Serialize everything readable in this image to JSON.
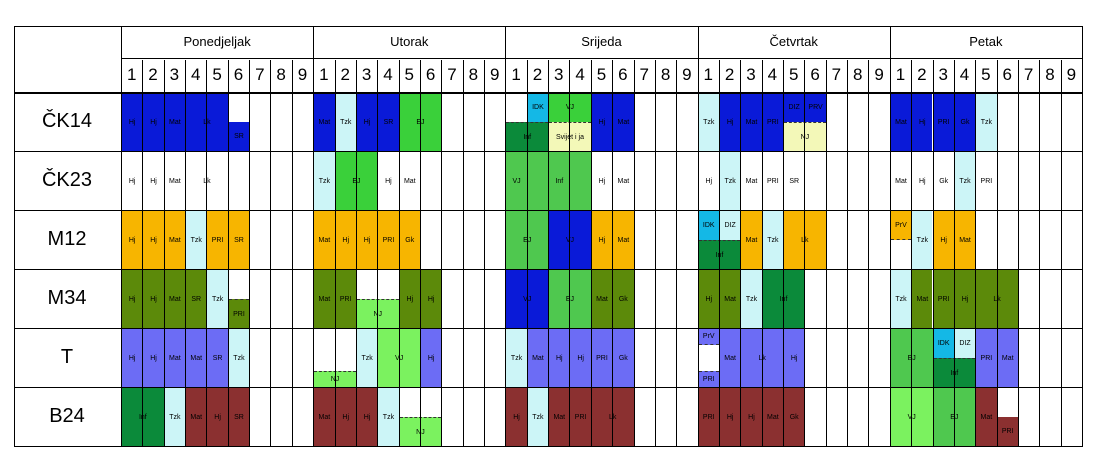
{
  "colors": {
    "blue": "#0a1ad8",
    "lightcyan": "#ccf5f7",
    "green": "#3ad03a",
    "darkgreen": "#0b8a3a",
    "cyan": "#14b8e6",
    "lightyellow": "#f3f8b8",
    "midgreen": "#4fc84f",
    "lightgreen": "#7bf25f",
    "orange": "#f7b500",
    "olive": "#5c8a0a",
    "periwinkle": "#6c6cf5",
    "maroon": "#8b3030"
  },
  "days": [
    "Ponedjeljak",
    "Utorak",
    "Srijeda",
    "Četvrtak",
    "Petak"
  ],
  "periods": [
    "1",
    "2",
    "3",
    "4",
    "5",
    "6",
    "7",
    "8",
    "9"
  ],
  "classes": [
    "ČK14",
    "ČK23",
    "M12",
    "M34",
    "T",
    "B24"
  ],
  "cells": [
    {
      "r": 0,
      "d": 0,
      "p": 0,
      "w": 1,
      "t": "Hj",
      "c": "blue"
    },
    {
      "r": 0,
      "d": 0,
      "p": 1,
      "w": 1,
      "t": "Hj",
      "c": "blue"
    },
    {
      "r": 0,
      "d": 0,
      "p": 2,
      "w": 1,
      "t": "Mat",
      "c": "blue"
    },
    {
      "r": 0,
      "d": 0,
      "p": 3,
      "w": 2,
      "t": "Lk",
      "c": "blue"
    },
    {
      "r": 0,
      "d": 0,
      "p": 5,
      "w": 1,
      "t": "SR",
      "c": "blue",
      "half": "bottom"
    },
    {
      "r": 0,
      "d": 1,
      "p": 0,
      "w": 1,
      "t": "Mat",
      "c": "blue"
    },
    {
      "r": 0,
      "d": 1,
      "p": 1,
      "w": 1,
      "t": "Tzk",
      "c": "lightcyan"
    },
    {
      "r": 0,
      "d": 1,
      "p": 2,
      "w": 1,
      "t": "Hj",
      "c": "blue"
    },
    {
      "r": 0,
      "d": 1,
      "p": 3,
      "w": 1,
      "t": "SR",
      "c": "blue"
    },
    {
      "r": 0,
      "d": 1,
      "p": 4,
      "w": 2,
      "t": "EJ",
      "c": "green"
    },
    {
      "r": 0,
      "d": 2,
      "p": 1,
      "w": 1,
      "t": "IDK",
      "c": "cyan",
      "half": "top"
    },
    {
      "r": 0,
      "d": 2,
      "p": 2,
      "w": 2,
      "t": "VJ",
      "c": "green",
      "half": "top"
    },
    {
      "r": 0,
      "d": 2,
      "p": 0,
      "w": 2,
      "t": "Inf",
      "c": "darkgreen",
      "half": "bottom",
      "dash": "t"
    },
    {
      "r": 0,
      "d": 2,
      "p": 2,
      "w": 2,
      "t": "Svijet i ja",
      "c": "lightyellow",
      "half": "bottom",
      "dash": "t"
    },
    {
      "r": 0,
      "d": 2,
      "p": 4,
      "w": 1,
      "t": "Hj",
      "c": "blue"
    },
    {
      "r": 0,
      "d": 2,
      "p": 5,
      "w": 1,
      "t": "Mat",
      "c": "blue"
    },
    {
      "r": 0,
      "d": 3,
      "p": 0,
      "w": 1,
      "t": "Tzk",
      "c": "lightcyan"
    },
    {
      "r": 0,
      "d": 3,
      "p": 1,
      "w": 1,
      "t": "Hj",
      "c": "blue"
    },
    {
      "r": 0,
      "d": 3,
      "p": 2,
      "w": 1,
      "t": "Mat",
      "c": "blue"
    },
    {
      "r": 0,
      "d": 3,
      "p": 3,
      "w": 1,
      "t": "PRI",
      "c": "blue"
    },
    {
      "r": 0,
      "d": 3,
      "p": 4,
      "w": 1,
      "t": "DIZ",
      "c": "blue",
      "half": "top"
    },
    {
      "r": 0,
      "d": 3,
      "p": 5,
      "w": 1,
      "t": "PRV",
      "c": "blue",
      "half": "top"
    },
    {
      "r": 0,
      "d": 3,
      "p": 4,
      "w": 2,
      "t": "NJ",
      "c": "lightyellow",
      "half": "bottom",
      "dash": "t"
    },
    {
      "r": 0,
      "d": 4,
      "p": 0,
      "w": 1,
      "t": "Mat",
      "c": "blue"
    },
    {
      "r": 0,
      "d": 4,
      "p": 1,
      "w": 1,
      "t": "Hj",
      "c": "blue"
    },
    {
      "r": 0,
      "d": 4,
      "p": 2,
      "w": 1,
      "t": "PRI",
      "c": "blue"
    },
    {
      "r": 0,
      "d": 4,
      "p": 3,
      "w": 1,
      "t": "Gk",
      "c": "blue"
    },
    {
      "r": 0,
      "d": 4,
      "p": 4,
      "w": 1,
      "t": "Tzk",
      "c": "lightcyan"
    },
    {
      "r": 1,
      "d": 0,
      "p": 0,
      "w": 1,
      "t": "Hj",
      "c": ""
    },
    {
      "r": 1,
      "d": 0,
      "p": 1,
      "w": 1,
      "t": "Hj",
      "c": ""
    },
    {
      "r": 1,
      "d": 0,
      "p": 2,
      "w": 1,
      "t": "Mat",
      "c": ""
    },
    {
      "r": 1,
      "d": 0,
      "p": 3,
      "w": 2,
      "t": "Lk",
      "c": ""
    },
    {
      "r": 1,
      "d": 1,
      "p": 0,
      "w": 1,
      "t": "Tzk",
      "c": "lightcyan"
    },
    {
      "r": 1,
      "d": 1,
      "p": 1,
      "w": 2,
      "t": "EJ",
      "c": "green"
    },
    {
      "r": 1,
      "d": 1,
      "p": 3,
      "w": 1,
      "t": "Hj",
      "c": ""
    },
    {
      "r": 1,
      "d": 1,
      "p": 4,
      "w": 1,
      "t": "Mat",
      "c": ""
    },
    {
      "r": 1,
      "d": 2,
      "p": 0,
      "w": 1,
      "t": "VJ",
      "c": "midgreen"
    },
    {
      "r": 1,
      "d": 2,
      "p": 1,
      "w": 3,
      "t": "Inf",
      "c": "midgreen"
    },
    {
      "r": 1,
      "d": 2,
      "p": 4,
      "w": 1,
      "t": "Hj",
      "c": ""
    },
    {
      "r": 1,
      "d": 2,
      "p": 5,
      "w": 1,
      "t": "Mat",
      "c": ""
    },
    {
      "r": 1,
      "d": 3,
      "p": 0,
      "w": 1,
      "t": "Hj",
      "c": ""
    },
    {
      "r": 1,
      "d": 3,
      "p": 1,
      "w": 1,
      "t": "Tzk",
      "c": "lightcyan"
    },
    {
      "r": 1,
      "d": 3,
      "p": 2,
      "w": 1,
      "t": "Mat",
      "c": ""
    },
    {
      "r": 1,
      "d": 3,
      "p": 3,
      "w": 1,
      "t": "PRI",
      "c": ""
    },
    {
      "r": 1,
      "d": 3,
      "p": 4,
      "w": 1,
      "t": "SR",
      "c": ""
    },
    {
      "r": 1,
      "d": 4,
      "p": 0,
      "w": 1,
      "t": "Mat",
      "c": ""
    },
    {
      "r": 1,
      "d": 4,
      "p": 1,
      "w": 1,
      "t": "Hj",
      "c": ""
    },
    {
      "r": 1,
      "d": 4,
      "p": 2,
      "w": 1,
      "t": "Gk",
      "c": ""
    },
    {
      "r": 1,
      "d": 4,
      "p": 3,
      "w": 1,
      "t": "Tzk",
      "c": "lightcyan"
    },
    {
      "r": 1,
      "d": 4,
      "p": 4,
      "w": 1,
      "t": "PRI",
      "c": ""
    },
    {
      "r": 2,
      "d": 0,
      "p": 0,
      "w": 1,
      "t": "Hj",
      "c": "orange"
    },
    {
      "r": 2,
      "d": 0,
      "p": 1,
      "w": 1,
      "t": "Hj",
      "c": "orange"
    },
    {
      "r": 2,
      "d": 0,
      "p": 2,
      "w": 1,
      "t": "Mat",
      "c": "orange"
    },
    {
      "r": 2,
      "d": 0,
      "p": 3,
      "w": 1,
      "t": "Tzk",
      "c": "lightcyan"
    },
    {
      "r": 2,
      "d": 0,
      "p": 4,
      "w": 1,
      "t": "PRI",
      "c": "orange"
    },
    {
      "r": 2,
      "d": 0,
      "p": 5,
      "w": 1,
      "t": "SR",
      "c": "orange"
    },
    {
      "r": 2,
      "d": 1,
      "p": 0,
      "w": 1,
      "t": "Mat",
      "c": "orange"
    },
    {
      "r": 2,
      "d": 1,
      "p": 1,
      "w": 1,
      "t": "Hj",
      "c": "orange"
    },
    {
      "r": 2,
      "d": 1,
      "p": 2,
      "w": 1,
      "t": "Hj",
      "c": "orange"
    },
    {
      "r": 2,
      "d": 1,
      "p": 3,
      "w": 1,
      "t": "PRI",
      "c": "orange"
    },
    {
      "r": 2,
      "d": 1,
      "p": 4,
      "w": 1,
      "t": "Gk",
      "c": "orange"
    },
    {
      "r": 2,
      "d": 2,
      "p": 0,
      "w": 2,
      "t": "EJ",
      "c": "midgreen"
    },
    {
      "r": 2,
      "d": 2,
      "p": 2,
      "w": 2,
      "t": "VJ",
      "c": "blue"
    },
    {
      "r": 2,
      "d": 2,
      "p": 4,
      "w": 1,
      "t": "Hj",
      "c": "orange"
    },
    {
      "r": 2,
      "d": 2,
      "p": 5,
      "w": 1,
      "t": "Mat",
      "c": "orange"
    },
    {
      "r": 2,
      "d": 3,
      "p": 0,
      "w": 1,
      "t": "IDK",
      "c": "cyan",
      "half": "top"
    },
    {
      "r": 2,
      "d": 3,
      "p": 1,
      "w": 1,
      "t": "DIZ",
      "c": "lightcyan",
      "half": "top"
    },
    {
      "r": 2,
      "d": 3,
      "p": 0,
      "w": 2,
      "t": "Inf",
      "c": "darkgreen",
      "half": "bottom",
      "dash": "t"
    },
    {
      "r": 2,
      "d": 3,
      "p": 2,
      "w": 1,
      "t": "Mat",
      "c": "orange"
    },
    {
      "r": 2,
      "d": 3,
      "p": 3,
      "w": 1,
      "t": "Tzk",
      "c": "lightcyan"
    },
    {
      "r": 2,
      "d": 3,
      "p": 4,
      "w": 2,
      "t": "Lk",
      "c": "orange"
    },
    {
      "r": 2,
      "d": 4,
      "p": 0,
      "w": 1,
      "t": "PrV",
      "c": "orange",
      "half": "top",
      "dash": "b"
    },
    {
      "r": 2,
      "d": 4,
      "p": 1,
      "w": 1,
      "t": "Tzk",
      "c": "lightcyan"
    },
    {
      "r": 2,
      "d": 4,
      "p": 2,
      "w": 1,
      "t": "Hj",
      "c": "orange"
    },
    {
      "r": 2,
      "d": 4,
      "p": 3,
      "w": 1,
      "t": "Mat",
      "c": "orange"
    },
    {
      "r": 3,
      "d": 0,
      "p": 0,
      "w": 1,
      "t": "Hj",
      "c": "olive"
    },
    {
      "r": 3,
      "d": 0,
      "p": 1,
      "w": 1,
      "t": "Hj",
      "c": "olive"
    },
    {
      "r": 3,
      "d": 0,
      "p": 2,
      "w": 1,
      "t": "Mat",
      "c": "olive"
    },
    {
      "r": 3,
      "d": 0,
      "p": 3,
      "w": 1,
      "t": "SR",
      "c": "olive"
    },
    {
      "r": 3,
      "d": 0,
      "p": 4,
      "w": 1,
      "t": "Tzk",
      "c": "lightcyan"
    },
    {
      "r": 3,
      "d": 0,
      "p": 5,
      "w": 1,
      "t": "PRI",
      "c": "olive",
      "half": "bottom",
      "dash": "t"
    },
    {
      "r": 3,
      "d": 1,
      "p": 0,
      "w": 1,
      "t": "Mat",
      "c": "olive"
    },
    {
      "r": 3,
      "d": 1,
      "p": 1,
      "w": 1,
      "t": "PRI",
      "c": "olive"
    },
    {
      "r": 3,
      "d": 1,
      "p": 2,
      "w": 2,
      "t": "NJ",
      "c": "lightgreen",
      "half": "bottom",
      "dash": "t"
    },
    {
      "r": 3,
      "d": 1,
      "p": 4,
      "w": 1,
      "t": "Hj",
      "c": "olive"
    },
    {
      "r": 3,
      "d": 1,
      "p": 5,
      "w": 1,
      "t": "Hj",
      "c": "olive"
    },
    {
      "r": 3,
      "d": 2,
      "p": 0,
      "w": 2,
      "t": "VJ",
      "c": "blue"
    },
    {
      "r": 3,
      "d": 2,
      "p": 2,
      "w": 2,
      "t": "EJ",
      "c": "midgreen"
    },
    {
      "r": 3,
      "d": 2,
      "p": 4,
      "w": 1,
      "t": "Mat",
      "c": "olive"
    },
    {
      "r": 3,
      "d": 2,
      "p": 5,
      "w": 1,
      "t": "Gk",
      "c": "olive"
    },
    {
      "r": 3,
      "d": 3,
      "p": 0,
      "w": 1,
      "t": "Hj",
      "c": "olive"
    },
    {
      "r": 3,
      "d": 3,
      "p": 1,
      "w": 1,
      "t": "Mat",
      "c": "olive"
    },
    {
      "r": 3,
      "d": 3,
      "p": 2,
      "w": 1,
      "t": "Tzk",
      "c": "lightcyan"
    },
    {
      "r": 3,
      "d": 3,
      "p": 3,
      "w": 2,
      "t": "Inf",
      "c": "darkgreen"
    },
    {
      "r": 3,
      "d": 4,
      "p": 0,
      "w": 1,
      "t": "Tzk",
      "c": "lightcyan"
    },
    {
      "r": 3,
      "d": 4,
      "p": 1,
      "w": 1,
      "t": "Mat",
      "c": "olive"
    },
    {
      "r": 3,
      "d": 4,
      "p": 2,
      "w": 1,
      "t": "PRI",
      "c": "olive"
    },
    {
      "r": 3,
      "d": 4,
      "p": 3,
      "w": 1,
      "t": "Hj",
      "c": "olive"
    },
    {
      "r": 3,
      "d": 4,
      "p": 4,
      "w": 2,
      "t": "Lk",
      "c": "olive"
    },
    {
      "r": 4,
      "d": 0,
      "p": 0,
      "w": 1,
      "t": "Hj",
      "c": "periwinkle"
    },
    {
      "r": 4,
      "d": 0,
      "p": 1,
      "w": 1,
      "t": "Hj",
      "c": "periwinkle"
    },
    {
      "r": 4,
      "d": 0,
      "p": 2,
      "w": 1,
      "t": "Mat",
      "c": "periwinkle"
    },
    {
      "r": 4,
      "d": 0,
      "p": 3,
      "w": 1,
      "t": "Mat",
      "c": "periwinkle"
    },
    {
      "r": 4,
      "d": 0,
      "p": 4,
      "w": 1,
      "t": "SR",
      "c": "periwinkle"
    },
    {
      "r": 4,
      "d": 0,
      "p": 5,
      "w": 1,
      "t": "Tzk",
      "c": "lightcyan"
    },
    {
      "r": 4,
      "d": 1,
      "p": 0,
      "w": 2,
      "t": "NJ",
      "c": "lightgreen",
      "half": "bottomsmall",
      "dash": "t"
    },
    {
      "r": 4,
      "d": 1,
      "p": 2,
      "w": 1,
      "t": "Tzk",
      "c": "lightcyan"
    },
    {
      "r": 4,
      "d": 1,
      "p": 3,
      "w": 2,
      "t": "VJ",
      "c": "lightgreen"
    },
    {
      "r": 4,
      "d": 1,
      "p": 5,
      "w": 1,
      "t": "Hj",
      "c": "periwinkle"
    },
    {
      "r": 4,
      "d": 2,
      "p": 0,
      "w": 1,
      "t": "Tzk",
      "c": "lightcyan"
    },
    {
      "r": 4,
      "d": 2,
      "p": 1,
      "w": 1,
      "t": "Mat",
      "c": "periwinkle"
    },
    {
      "r": 4,
      "d": 2,
      "p": 2,
      "w": 1,
      "t": "Hj",
      "c": "periwinkle"
    },
    {
      "r": 4,
      "d": 2,
      "p": 3,
      "w": 1,
      "t": "Hj",
      "c": "periwinkle"
    },
    {
      "r": 4,
      "d": 2,
      "p": 4,
      "w": 1,
      "t": "PRI",
      "c": "periwinkle"
    },
    {
      "r": 4,
      "d": 2,
      "p": 5,
      "w": 1,
      "t": "Gk",
      "c": "periwinkle"
    },
    {
      "r": 4,
      "d": 3,
      "p": 0,
      "w": 1,
      "t": "PrV",
      "c": "periwinkle",
      "half": "topsmall",
      "dash": "b"
    },
    {
      "r": 4,
      "d": 3,
      "p": 0,
      "w": 1,
      "t": "PRI",
      "c": "periwinkle",
      "half": "bottomsmall",
      "dash": "t"
    },
    {
      "r": 4,
      "d": 3,
      "p": 1,
      "w": 1,
      "t": "Mat",
      "c": "periwinkle"
    },
    {
      "r": 4,
      "d": 3,
      "p": 2,
      "w": 2,
      "t": "Lk",
      "c": "periwinkle"
    },
    {
      "r": 4,
      "d": 3,
      "p": 4,
      "w": 1,
      "t": "Hj",
      "c": "periwinkle"
    },
    {
      "r": 4,
      "d": 4,
      "p": 0,
      "w": 2,
      "t": "EJ",
      "c": "midgreen"
    },
    {
      "r": 4,
      "d": 4,
      "p": 2,
      "w": 1,
      "t": "IDK",
      "c": "cyan",
      "half": "top"
    },
    {
      "r": 4,
      "d": 4,
      "p": 3,
      "w": 1,
      "t": "DIZ",
      "c": "lightcyan",
      "half": "top"
    },
    {
      "r": 4,
      "d": 4,
      "p": 2,
      "w": 2,
      "t": "Inf",
      "c": "darkgreen",
      "half": "bottom",
      "dash": "t"
    },
    {
      "r": 4,
      "d": 4,
      "p": 4,
      "w": 1,
      "t": "PRI",
      "c": "periwinkle"
    },
    {
      "r": 4,
      "d": 4,
      "p": 5,
      "w": 1,
      "t": "Mat",
      "c": "periwinkle"
    },
    {
      "r": 5,
      "d": 0,
      "p": 0,
      "w": 2,
      "t": "Inf",
      "c": "darkgreen"
    },
    {
      "r": 5,
      "d": 0,
      "p": 2,
      "w": 1,
      "t": "Tzk",
      "c": "lightcyan"
    },
    {
      "r": 5,
      "d": 0,
      "p": 3,
      "w": 1,
      "t": "Mat",
      "c": "maroon"
    },
    {
      "r": 5,
      "d": 0,
      "p": 4,
      "w": 1,
      "t": "Hj",
      "c": "maroon"
    },
    {
      "r": 5,
      "d": 0,
      "p": 5,
      "w": 1,
      "t": "SR",
      "c": "maroon"
    },
    {
      "r": 5,
      "d": 1,
      "p": 0,
      "w": 1,
      "t": "Mat",
      "c": "maroon"
    },
    {
      "r": 5,
      "d": 1,
      "p": 1,
      "w": 1,
      "t": "Hj",
      "c": "maroon"
    },
    {
      "r": 5,
      "d": 1,
      "p": 2,
      "w": 1,
      "t": "Hj",
      "c": "maroon"
    },
    {
      "r": 5,
      "d": 1,
      "p": 3,
      "w": 1,
      "t": "Tzk",
      "c": "lightcyan"
    },
    {
      "r": 5,
      "d": 1,
      "p": 4,
      "w": 2,
      "t": "NJ",
      "c": "lightgreen",
      "half": "bottom",
      "dash": "t"
    },
    {
      "r": 5,
      "d": 2,
      "p": 0,
      "w": 1,
      "t": "Hj",
      "c": "maroon"
    },
    {
      "r": 5,
      "d": 2,
      "p": 1,
      "w": 1,
      "t": "Tzk",
      "c": "lightcyan"
    },
    {
      "r": 5,
      "d": 2,
      "p": 2,
      "w": 1,
      "t": "Mat",
      "c": "maroon"
    },
    {
      "r": 5,
      "d": 2,
      "p": 3,
      "w": 1,
      "t": "PRI",
      "c": "maroon"
    },
    {
      "r": 5,
      "d": 2,
      "p": 4,
      "w": 2,
      "t": "Lk",
      "c": "maroon"
    },
    {
      "r": 5,
      "d": 3,
      "p": 0,
      "w": 1,
      "t": "PRI",
      "c": "maroon"
    },
    {
      "r": 5,
      "d": 3,
      "p": 1,
      "w": 1,
      "t": "Hj",
      "c": "maroon"
    },
    {
      "r": 5,
      "d": 3,
      "p": 2,
      "w": 1,
      "t": "Hj",
      "c": "maroon"
    },
    {
      "r": 5,
      "d": 3,
      "p": 3,
      "w": 1,
      "t": "Mat",
      "c": "maroon"
    },
    {
      "r": 5,
      "d": 3,
      "p": 4,
      "w": 1,
      "t": "Gk",
      "c": "maroon"
    },
    {
      "r": 5,
      "d": 4,
      "p": 0,
      "w": 2,
      "t": "VJ",
      "c": "lightgreen"
    },
    {
      "r": 5,
      "d": 4,
      "p": 2,
      "w": 2,
      "t": "EJ",
      "c": "midgreen"
    },
    {
      "r": 5,
      "d": 4,
      "p": 4,
      "w": 1,
      "t": "Mat",
      "c": "maroon"
    },
    {
      "r": 5,
      "d": 4,
      "p": 5,
      "w": 1,
      "t": "PRI",
      "c": "maroon",
      "half": "bottom"
    }
  ]
}
